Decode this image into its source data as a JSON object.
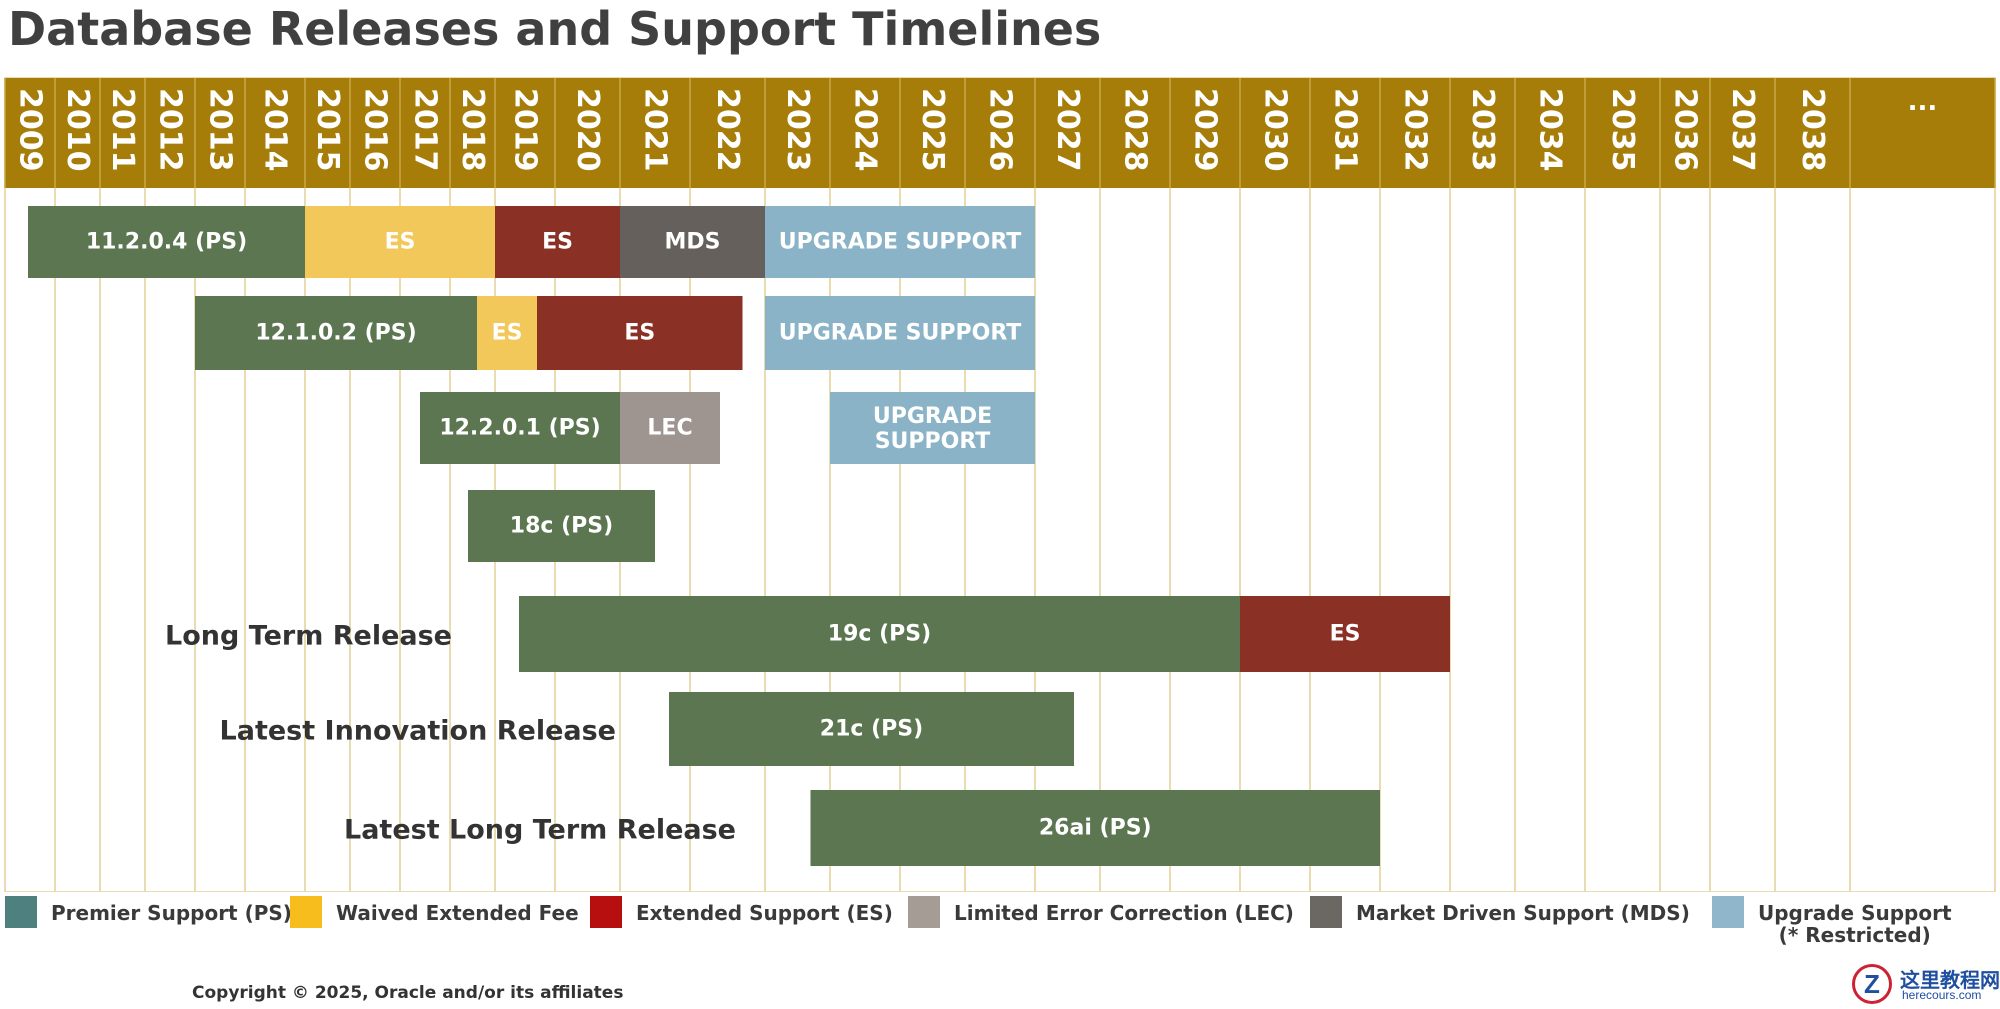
{
  "title": "Database Releases and Support Timelines",
  "chart_data": {
    "type": "gantt",
    "x_axis": {
      "years": [
        "2009",
        "2010",
        "2011",
        "2012",
        "2013",
        "2014",
        "2015",
        "2016",
        "2017",
        "2018",
        "2019",
        "2020",
        "2021",
        "2022",
        "2023",
        "2024",
        "2025",
        "2026",
        "2027",
        "2028",
        "2029",
        "2030",
        "2031",
        "2032",
        "2033",
        "2034",
        "2035",
        "2036",
        "2037",
        "2038",
        "..."
      ]
    },
    "colors": {
      "header": "#a57d08",
      "gridline": "#e8dcb0",
      "PS": "#5b7650",
      "WAIVED": "#f2c85a",
      "ES": "#8a3025",
      "MDS": "#65605b",
      "LEC": "#9f9590",
      "UPGRADE": "#8bb3c7"
    },
    "rows": [
      {
        "row_label": "",
        "segments": [
          {
            "label": "11.2.0.4 (PS)",
            "kind": "PS",
            "start": "2009",
            "end": "2015"
          },
          {
            "label": "ES",
            "kind": "WAIVED",
            "start": "2015",
            "end": "2019"
          },
          {
            "label": "ES",
            "kind": "ES",
            "start": "2019",
            "end": "2021"
          },
          {
            "label": "MDS",
            "kind": "MDS",
            "start": "2021",
            "end": "2023"
          },
          {
            "label": "UPGRADE SUPPORT",
            "kind": "UPGRADE",
            "start": "2023",
            "end": "2027"
          }
        ]
      },
      {
        "row_label": "",
        "segments": [
          {
            "label": "12.1.0.2 (PS)",
            "kind": "PS",
            "start": "2013",
            "end": "2018.6"
          },
          {
            "label": "ES",
            "kind": "WAIVED",
            "start": "2018.6",
            "end": "2019.7"
          },
          {
            "label": "ES",
            "kind": "ES",
            "start": "2019.7",
            "end": "2022.7"
          },
          {
            "label": "UPGRADE SUPPORT",
            "kind": "UPGRADE",
            "start": "2023",
            "end": "2027"
          }
        ]
      },
      {
        "row_label": "",
        "segments": [
          {
            "label": "12.2.0.1 (PS)",
            "kind": "PS",
            "start": "2017.4",
            "end": "2021"
          },
          {
            "label": "LEC",
            "kind": "LEC",
            "start": "2021",
            "end": "2022.4"
          },
          {
            "label": "UPGRADE\nSUPPORT",
            "kind": "UPGRADE",
            "start": "2024",
            "end": "2027"
          }
        ]
      },
      {
        "row_label": "",
        "segments": [
          {
            "label": "18c (PS)",
            "kind": "PS",
            "start": "2018.4",
            "end": "2021.5"
          }
        ]
      },
      {
        "row_label": "Long Term Release",
        "segments": [
          {
            "label": "19c (PS)",
            "kind": "PS",
            "start": "2019.4",
            "end": "2030"
          },
          {
            "label": "ES",
            "kind": "ES",
            "start": "2030",
            "end": "2033"
          }
        ]
      },
      {
        "row_label": "Latest Innovation Release",
        "segments": [
          {
            "label": "21c (PS)",
            "kind": "PS",
            "start": "2021.7",
            "end": "2027.6"
          }
        ]
      },
      {
        "row_label": "Latest Long Term Release",
        "segments": [
          {
            "label": "26ai (PS)",
            "kind": "PS",
            "start": "2023.7",
            "end": "2032"
          }
        ]
      }
    ],
    "legend": [
      {
        "label": "Premier Support (PS)",
        "color": "#4f8080"
      },
      {
        "label": "Waived Extended Fee",
        "color": "#f7bd1d"
      },
      {
        "label": "Extended Support (ES)",
        "color": "#b70f10"
      },
      {
        "label": "Limited Error Correction (LEC)",
        "color": "#a59c96"
      },
      {
        "label": "Market Driven Support (MDS)",
        "color": "#6b6763"
      },
      {
        "label": "Upgrade Support",
        "sub": "(* Restricted)",
        "color": "#8fb6cb"
      }
    ]
  },
  "copyright": "Copyright © 2025, Oracle and/or its affiliates",
  "watermark": {
    "logo_letter": "Z",
    "cn": "这里教程网",
    "en": "herecours.com"
  }
}
